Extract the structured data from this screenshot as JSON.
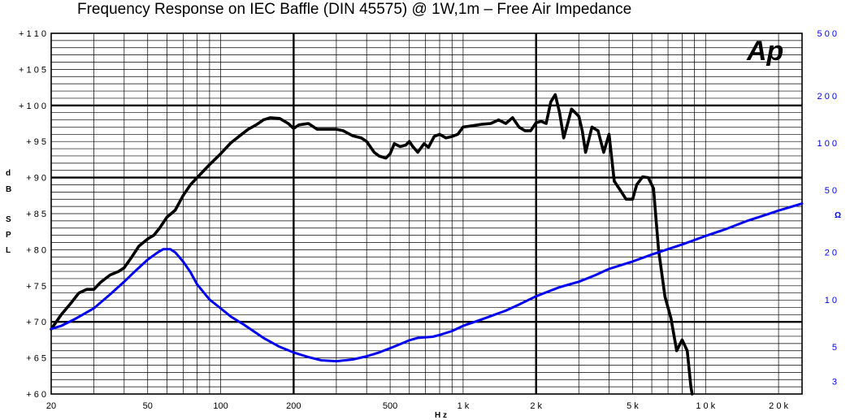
{
  "chart_data": {
    "type": "line",
    "title": "Frequency Response on IEC Baffle (DIN 45575)  @ 1W,1m – Free Air Impedance",
    "xlabel": "H z",
    "ylabel_left": [
      "d",
      "B",
      "",
      "S",
      "P",
      "L"
    ],
    "ylabel_right": "Ω",
    "logo": "Ap",
    "xscale": "log",
    "xlim": [
      20,
      25000
    ],
    "ylim_left": [
      60,
      110
    ],
    "ylim_right": [
      2.5,
      500
    ],
    "yscale_right": "log",
    "x_ticks": [
      {
        "value": 20,
        "label": "20"
      },
      {
        "value": 50,
        "label": "50"
      },
      {
        "value": 100,
        "label": "100"
      },
      {
        "value": 200,
        "label": "200"
      },
      {
        "value": 500,
        "label": "500"
      },
      {
        "value": 1000,
        "label": "1 k"
      },
      {
        "value": 2000,
        "label": "2 k"
      },
      {
        "value": 5000,
        "label": "5 k"
      },
      {
        "value": 10000,
        "label": "1 0 k"
      },
      {
        "value": 20000,
        "label": "2 0 k"
      }
    ],
    "y_ticks_left": [
      {
        "value": 110,
        "label": "+ 1 1 0"
      },
      {
        "value": 105,
        "label": "+ 1 0 5"
      },
      {
        "value": 100,
        "label": "+ 1 0 0"
      },
      {
        "value": 95,
        "label": "+ 9 5"
      },
      {
        "value": 90,
        "label": "+ 9 0"
      },
      {
        "value": 85,
        "label": "+ 8 5"
      },
      {
        "value": 80,
        "label": "+ 8 0"
      },
      {
        "value": 75,
        "label": "+ 7 5"
      },
      {
        "value": 70,
        "label": "+ 7 0"
      },
      {
        "value": 65,
        "label": "+ 6 5"
      },
      {
        "value": 60,
        "label": "+ 6 0"
      }
    ],
    "y_ticks_right": [
      {
        "value": 500,
        "label": "5 0 0"
      },
      {
        "value": 200,
        "label": "2 0 0"
      },
      {
        "value": 100,
        "label": "1 0 0"
      },
      {
        "value": 50,
        "label": "5 0"
      },
      {
        "value": 20,
        "label": "2 0"
      },
      {
        "value": 10,
        "label": "1 0"
      },
      {
        "value": 5,
        "label": "5"
      },
      {
        "value": 3,
        "label": "3"
      }
    ],
    "grid": true,
    "series": [
      {
        "color": "#000000",
        "axis": "left",
        "points": [
          [
            20,
            69
          ],
          [
            22,
            71
          ],
          [
            24,
            72.5
          ],
          [
            26,
            74
          ],
          [
            28,
            74.5
          ],
          [
            30,
            74.5
          ],
          [
            32,
            75.5
          ],
          [
            35,
            76.5
          ],
          [
            38,
            77
          ],
          [
            40,
            77.5
          ],
          [
            43,
            79
          ],
          [
            46,
            80.5
          ],
          [
            50,
            81.5
          ],
          [
            53,
            82
          ],
          [
            56,
            83
          ],
          [
            60,
            84.5
          ],
          [
            65,
            85.5
          ],
          [
            70,
            87.5
          ],
          [
            75,
            89
          ],
          [
            80,
            90
          ],
          [
            90,
            91.8
          ],
          [
            100,
            93.3
          ],
          [
            110,
            94.8
          ],
          [
            120,
            95.8
          ],
          [
            130,
            96.7
          ],
          [
            140,
            97.3
          ],
          [
            150,
            98
          ],
          [
            160,
            98.3
          ],
          [
            175,
            98.2
          ],
          [
            190,
            97.5
          ],
          [
            200,
            96.8
          ],
          [
            210,
            97.3
          ],
          [
            230,
            97.5
          ],
          [
            250,
            96.7
          ],
          [
            300,
            96.7
          ],
          [
            320,
            96.5
          ],
          [
            350,
            95.8
          ],
          [
            380,
            95.5
          ],
          [
            400,
            95
          ],
          [
            430,
            93.5
          ],
          [
            450,
            93
          ],
          [
            480,
            92.7
          ],
          [
            500,
            93.3
          ],
          [
            520,
            94.7
          ],
          [
            550,
            94.3
          ],
          [
            580,
            94.5
          ],
          [
            600,
            95
          ],
          [
            620,
            94.3
          ],
          [
            650,
            93.5
          ],
          [
            690,
            94.7
          ],
          [
            720,
            94.2
          ],
          [
            760,
            95.7
          ],
          [
            800,
            96
          ],
          [
            850,
            95.5
          ],
          [
            900,
            95.7
          ],
          [
            950,
            96
          ],
          [
            1000,
            97
          ],
          [
            1100,
            97.2
          ],
          [
            1200,
            97.4
          ],
          [
            1300,
            97.5
          ],
          [
            1400,
            98
          ],
          [
            1500,
            97.5
          ],
          [
            1600,
            98.3
          ],
          [
            1700,
            97
          ],
          [
            1800,
            96.5
          ],
          [
            1900,
            96.5
          ],
          [
            2000,
            97.6
          ],
          [
            2100,
            97.8
          ],
          [
            2200,
            97.5
          ],
          [
            2300,
            100.5
          ],
          [
            2400,
            101.5
          ],
          [
            2500,
            99
          ],
          [
            2600,
            95.5
          ],
          [
            2700,
            97.5
          ],
          [
            2800,
            99.5
          ],
          [
            2900,
            99
          ],
          [
            3000,
            98.5
          ],
          [
            3100,
            96.5
          ],
          [
            3200,
            93.5
          ],
          [
            3400,
            97
          ],
          [
            3600,
            96.5
          ],
          [
            3800,
            93.5
          ],
          [
            4000,
            96
          ],
          [
            4200,
            89.5
          ],
          [
            4500,
            88
          ],
          [
            4700,
            87
          ],
          [
            5000,
            87
          ],
          [
            5200,
            89
          ],
          [
            5500,
            90.1
          ],
          [
            5800,
            90
          ],
          [
            6100,
            88.5
          ],
          [
            6400,
            80
          ],
          [
            6800,
            73.5
          ],
          [
            7200,
            70.5
          ],
          [
            7600,
            66
          ],
          [
            8000,
            67.5
          ],
          [
            8400,
            66
          ],
          [
            8700,
            61
          ],
          [
            8800,
            60
          ]
        ]
      },
      {
        "color": "#0000ee",
        "axis": "right",
        "points": [
          [
            20,
            6.5
          ],
          [
            22,
            6.8
          ],
          [
            25,
            7.5
          ],
          [
            30,
            8.8
          ],
          [
            35,
            10.8
          ],
          [
            40,
            13
          ],
          [
            45,
            15.5
          ],
          [
            50,
            18
          ],
          [
            55,
            20
          ],
          [
            58,
            21
          ],
          [
            62,
            21
          ],
          [
            65,
            20
          ],
          [
            70,
            17.5
          ],
          [
            75,
            15
          ],
          [
            80,
            12.5
          ],
          [
            90,
            10
          ],
          [
            100,
            8.8
          ],
          [
            110,
            7.8
          ],
          [
            125,
            6.9
          ],
          [
            150,
            5.7
          ],
          [
            175,
            5
          ],
          [
            200,
            4.6
          ],
          [
            230,
            4.3
          ],
          [
            260,
            4.1
          ],
          [
            300,
            4.05
          ],
          [
            350,
            4.15
          ],
          [
            400,
            4.35
          ],
          [
            450,
            4.6
          ],
          [
            500,
            4.9
          ],
          [
            550,
            5.2
          ],
          [
            600,
            5.5
          ],
          [
            650,
            5.7
          ],
          [
            750,
            5.8
          ],
          [
            800,
            5.95
          ],
          [
            900,
            6.3
          ],
          [
            1000,
            6.8
          ],
          [
            1200,
            7.5
          ],
          [
            1500,
            8.5
          ],
          [
            1700,
            9.3
          ],
          [
            2000,
            10.5
          ],
          [
            2500,
            12
          ],
          [
            3000,
            13
          ],
          [
            3500,
            14.3
          ],
          [
            4000,
            15.7
          ],
          [
            5000,
            17.5
          ],
          [
            6000,
            19.4
          ],
          [
            7000,
            21
          ],
          [
            8000,
            22.5
          ],
          [
            9000,
            24
          ],
          [
            10000,
            25.5
          ],
          [
            12000,
            28
          ],
          [
            15000,
            32
          ],
          [
            18000,
            35
          ],
          [
            20000,
            37
          ],
          [
            25000,
            41
          ]
        ]
      }
    ]
  }
}
